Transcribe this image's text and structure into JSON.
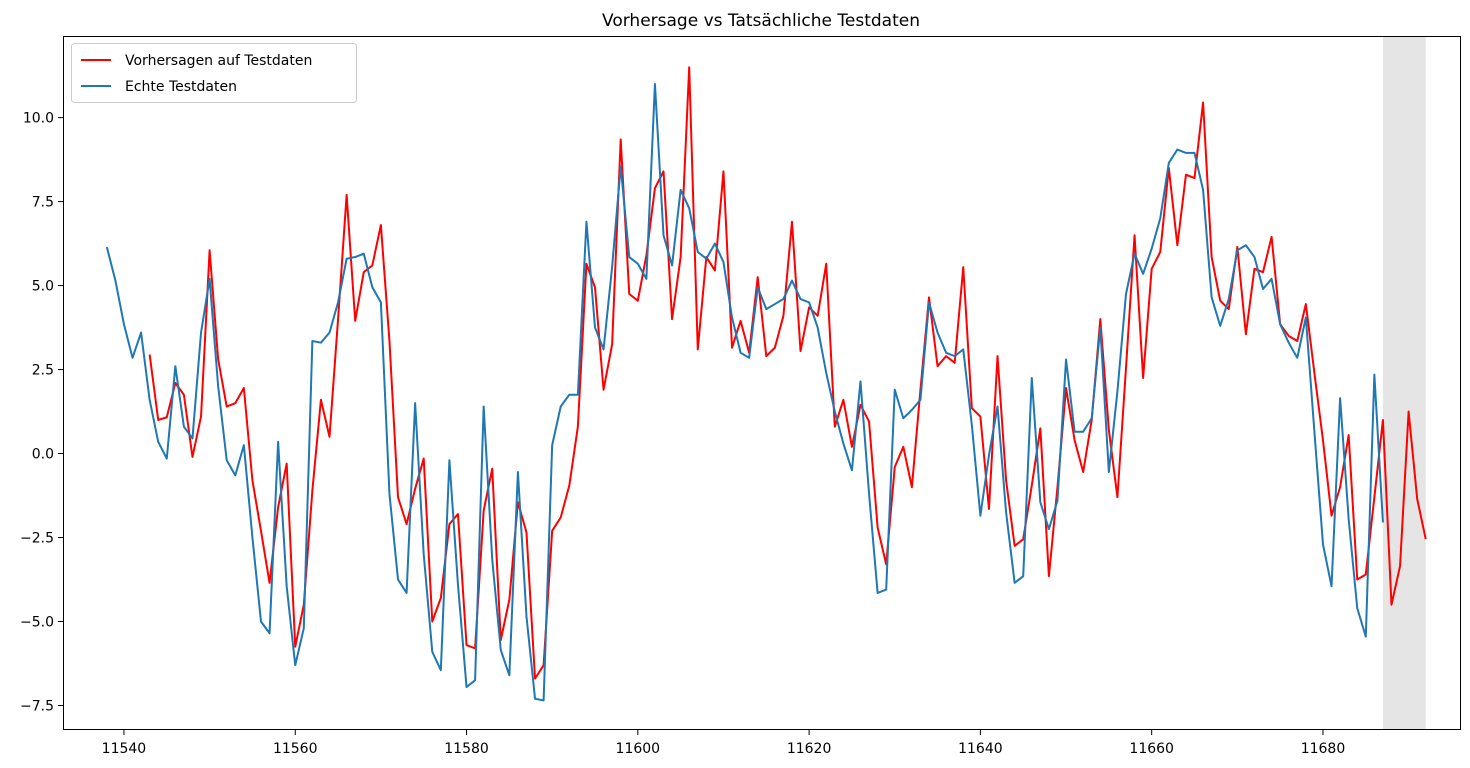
{
  "chart_data": {
    "type": "line",
    "title": "Vorhersage vs Tatsächliche Testdaten",
    "xlabel": "",
    "ylabel": "",
    "xlim": [
      11533,
      11696
    ],
    "ylim": [
      -8.2,
      12.4
    ],
    "x_ticks": [
      11540,
      11560,
      11580,
      11600,
      11620,
      11640,
      11660,
      11680
    ],
    "y_ticks": [
      -7.5,
      -5.0,
      -2.5,
      0.0,
      2.5,
      5.0,
      7.5,
      10.0
    ],
    "x_tick_labels": [
      "11540",
      "11560",
      "11580",
      "11600",
      "11620",
      "11640",
      "11660",
      "11680"
    ],
    "y_tick_labels": [
      "−7.5",
      "−5.0",
      "−2.5",
      "0.0",
      "2.5",
      "5.0",
      "7.5",
      "10.0"
    ],
    "grid": false,
    "legend_position": "top-left",
    "shaded_region": {
      "x_start": 11687,
      "x_end": 11692,
      "color": "#e5e5e5"
    },
    "series": [
      {
        "name": "Vorhersagen auf Testdaten",
        "color": "#ff0000",
        "x": [
          11543,
          11544,
          11545,
          11546,
          11547,
          11548,
          11549,
          11550,
          11551,
          11552,
          11553,
          11554,
          11555,
          11556,
          11557,
          11558,
          11559,
          11560,
          11561,
          11562,
          11563,
          11564,
          11565,
          11566,
          11567,
          11568,
          11569,
          11570,
          11571,
          11572,
          11573,
          11574,
          11575,
          11576,
          11577,
          11578,
          11579,
          11580,
          11581,
          11582,
          11583,
          11584,
          11585,
          11586,
          11587,
          11588,
          11589,
          11590,
          11591,
          11592,
          11593,
          11594,
          11595,
          11596,
          11597,
          11598,
          11599,
          11600,
          11601,
          11602,
          11603,
          11604,
          11605,
          11606,
          11607,
          11608,
          11609,
          11610,
          11611,
          11612,
          11613,
          11614,
          11615,
          11616,
          11617,
          11618,
          11619,
          11620,
          11621,
          11622,
          11623,
          11624,
          11625,
          11626,
          11627,
          11628,
          11629,
          11630,
          11631,
          11632,
          11633,
          11634,
          11635,
          11636,
          11637,
          11638,
          11639,
          11640,
          11641,
          11642,
          11643,
          11644,
          11645,
          11646,
          11647,
          11648,
          11649,
          11650,
          11651,
          11652,
          11653,
          11654,
          11655,
          11656,
          11657,
          11658,
          11659,
          11660,
          11661,
          11662,
          11663,
          11664,
          11665,
          11666,
          11667,
          11668,
          11669,
          11670,
          11671,
          11672,
          11673,
          11674,
          11675,
          11676,
          11677,
          11678,
          11679,
          11680,
          11681,
          11682,
          11683,
          11684,
          11685,
          11686,
          11687,
          11688,
          11689,
          11690,
          11691,
          11692
        ],
        "y": [
          2.95,
          1.0,
          1.08,
          2.1,
          1.75,
          -0.1,
          1.1,
          6.05,
          2.8,
          1.4,
          1.5,
          1.95,
          -0.8,
          -2.3,
          -3.85,
          -1.6,
          -0.3,
          -5.75,
          -4.5,
          -1.1,
          1.6,
          0.5,
          4.0,
          7.7,
          3.95,
          5.4,
          5.6,
          6.8,
          3.35,
          -1.3,
          -2.1,
          -1.05,
          -0.15,
          -5.0,
          -4.3,
          -2.1,
          -1.8,
          -5.7,
          -5.8,
          -1.7,
          -0.45,
          -5.55,
          -4.35,
          -1.45,
          -2.35,
          -6.7,
          -6.3,
          -2.3,
          -1.9,
          -0.95,
          0.8,
          5.65,
          4.95,
          1.9,
          3.25,
          9.35,
          4.75,
          4.55,
          5.9,
          7.9,
          8.4,
          4.0,
          5.85,
          11.5,
          3.1,
          5.85,
          5.45,
          8.4,
          3.15,
          3.95,
          3.0,
          5.25,
          2.9,
          3.15,
          4.1,
          6.9,
          3.05,
          4.35,
          4.1,
          5.65,
          0.8,
          1.6,
          0.2,
          1.45,
          0.95,
          -2.2,
          -3.3,
          -0.4,
          0.2,
          -1.0,
          1.9,
          4.65,
          2.6,
          2.9,
          2.7,
          5.55,
          1.35,
          1.1,
          -1.65,
          2.9,
          -0.8,
          -2.75,
          -2.55,
          -0.95,
          0.75,
          -3.65,
          -1.0,
          1.95,
          0.4,
          -0.55,
          1.0,
          4.0,
          0.7,
          -1.3,
          2.55,
          6.5,
          2.25,
          5.5,
          6.0,
          8.5,
          6.2,
          8.3,
          8.2,
          10.45,
          5.85,
          4.55,
          4.3,
          6.15,
          3.55,
          5.5,
          5.4,
          6.45,
          3.85,
          3.5,
          3.35,
          4.45,
          2.4,
          0.4,
          -1.85,
          -1.0,
          0.55,
          -3.75,
          -3.6,
          -1.3,
          1.0,
          -4.5,
          -3.35,
          1.25,
          -1.35,
          -2.55
        ]
      },
      {
        "name": "Echte Testdaten",
        "color": "#1f77b4",
        "x": [
          11538,
          11539,
          11540,
          11541,
          11542,
          11543,
          11544,
          11545,
          11546,
          11547,
          11548,
          11549,
          11550,
          11551,
          11552,
          11553,
          11554,
          11555,
          11556,
          11557,
          11558,
          11559,
          11560,
          11561,
          11562,
          11563,
          11564,
          11565,
          11566,
          11567,
          11568,
          11569,
          11570,
          11571,
          11572,
          11573,
          11574,
          11575,
          11576,
          11577,
          11578,
          11579,
          11580,
          11581,
          11582,
          11583,
          11584,
          11585,
          11586,
          11587,
          11588,
          11589,
          11590,
          11591,
          11592,
          11593,
          11594,
          11595,
          11596,
          11597,
          11598,
          11599,
          11600,
          11601,
          11602,
          11603,
          11604,
          11605,
          11606,
          11607,
          11608,
          11609,
          11610,
          11611,
          11612,
          11613,
          11614,
          11615,
          11616,
          11617,
          11618,
          11619,
          11620,
          11621,
          11622,
          11623,
          11624,
          11625,
          11626,
          11627,
          11628,
          11629,
          11630,
          11631,
          11632,
          11633,
          11634,
          11635,
          11636,
          11637,
          11638,
          11639,
          11640,
          11641,
          11642,
          11643,
          11644,
          11645,
          11646,
          11647,
          11648,
          11649,
          11650,
          11651,
          11652,
          11653,
          11654,
          11655,
          11656,
          11657,
          11658,
          11659,
          11660,
          11661,
          11662,
          11663,
          11664,
          11665,
          11666,
          11667,
          11668,
          11669,
          11670,
          11671,
          11672,
          11673,
          11674,
          11675,
          11676,
          11677,
          11678,
          11679,
          11680,
          11681,
          11682,
          11683,
          11684,
          11685,
          11686,
          11687
        ],
        "y": [
          6.15,
          5.15,
          3.85,
          2.85,
          3.6,
          1.6,
          0.35,
          -0.15,
          2.6,
          0.8,
          0.45,
          3.6,
          5.2,
          2.0,
          -0.2,
          -0.65,
          0.25,
          -2.5,
          -5.0,
          -5.35,
          0.35,
          -3.95,
          -6.3,
          -5.2,
          3.35,
          3.3,
          3.6,
          4.5,
          5.8,
          5.85,
          5.95,
          4.95,
          4.5,
          -1.2,
          -3.75,
          -4.15,
          1.5,
          -3.0,
          -5.9,
          -6.45,
          -0.2,
          -3.9,
          -6.95,
          -6.75,
          1.4,
          -3.15,
          -5.85,
          -6.6,
          -0.55,
          -4.85,
          -7.3,
          -7.35,
          0.25,
          1.4,
          1.75,
          1.75,
          6.9,
          3.75,
          3.1,
          5.55,
          8.55,
          5.85,
          5.65,
          5.2,
          11.0,
          6.5,
          5.6,
          7.85,
          7.3,
          6.0,
          5.8,
          6.25,
          5.7,
          4.05,
          3.0,
          2.85,
          4.95,
          4.3,
          4.45,
          4.6,
          5.15,
          4.6,
          4.5,
          3.75,
          2.4,
          1.25,
          0.3,
          -0.5,
          2.15,
          -1.2,
          -4.15,
          -4.05,
          1.9,
          1.05,
          1.3,
          1.6,
          4.5,
          3.6,
          3.0,
          2.9,
          3.1,
          0.85,
          -1.85,
          -0.05,
          1.4,
          -1.75,
          -3.85,
          -3.65,
          2.25,
          -1.45,
          -2.25,
          -1.4,
          2.8,
          0.65,
          0.65,
          1.05,
          3.75,
          -0.55,
          1.85,
          4.75,
          5.95,
          5.35,
          6.1,
          7.0,
          8.65,
          9.05,
          8.95,
          8.95,
          7.85,
          4.65,
          3.8,
          4.6,
          6.05,
          6.2,
          5.85,
          4.9,
          5.2,
          3.85,
          3.3,
          2.85,
          4.05,
          0.65,
          -2.7,
          -3.95,
          1.65,
          -1.95,
          -4.6,
          -5.45,
          2.35,
          -2.05
        ]
      }
    ]
  }
}
